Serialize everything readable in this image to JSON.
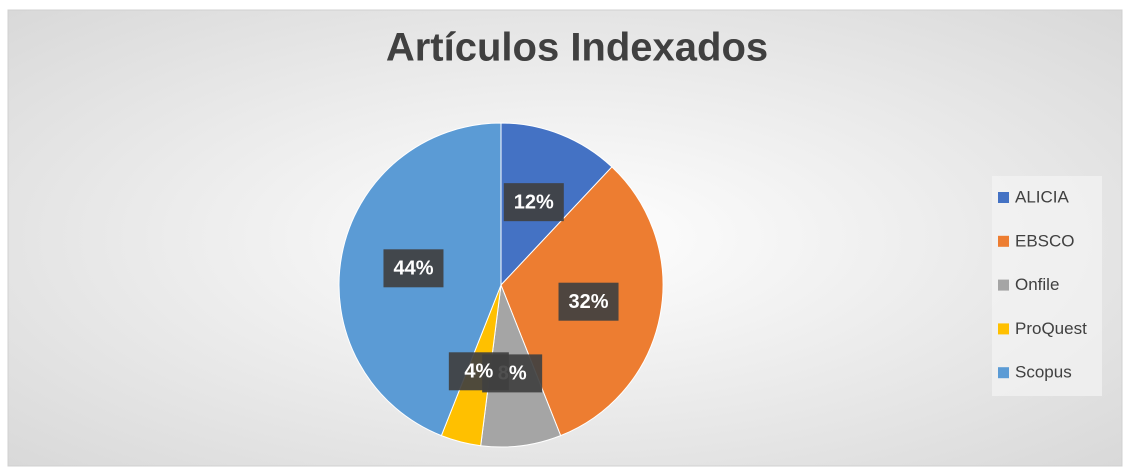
{
  "chart_data": {
    "type": "pie",
    "title": "Artículos Indexados",
    "categories": [
      "ALICIA",
      "EBSCO",
      "Onfile",
      "ProQuest",
      "Scopus"
    ],
    "values": [
      12,
      32,
      8,
      4,
      44
    ],
    "value_labels": [
      "12%",
      "32%",
      "8%",
      "4%",
      "44%"
    ],
    "colors": [
      "#4472c4",
      "#ed7d31",
      "#a5a5a5",
      "#ffc000",
      "#5b9bd5"
    ],
    "legend": "right"
  }
}
